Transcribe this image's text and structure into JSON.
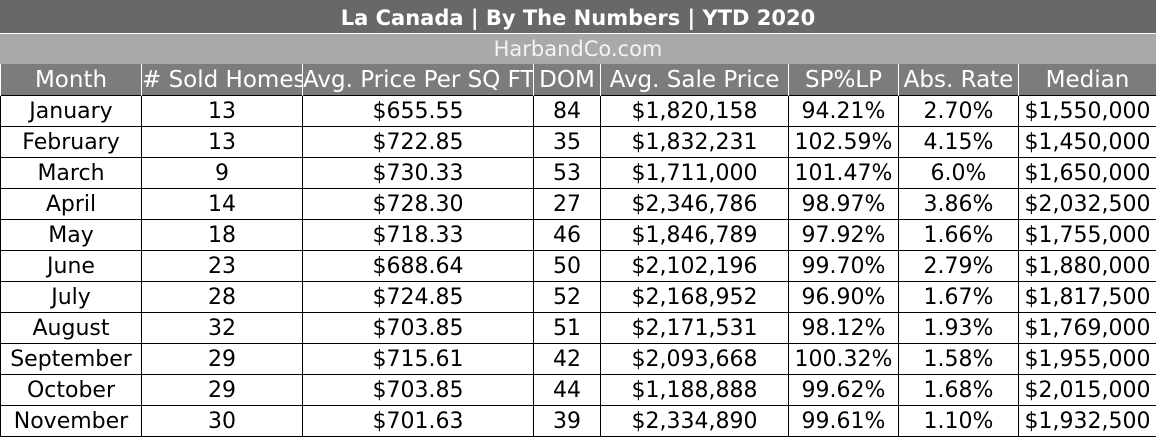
{
  "title": "La Canada  |  By The Numbers  |  YTD 2020",
  "subtitle": "HarbandCo.com",
  "chart_data": {
    "type": "table",
    "columns": [
      "Month",
      "# Sold Homes",
      "Avg. Price Per SQ FT",
      "DOM",
      "Avg. Sale Price",
      "SP%LP",
      "Abs. Rate",
      "Median"
    ],
    "rows": [
      [
        "January",
        "13",
        "$655.55",
        "84",
        "$1,820,158",
        "94.21%",
        "2.70%",
        "$1,550,000"
      ],
      [
        "February",
        "13",
        "$722.85",
        "35",
        "$1,832,231",
        "102.59%",
        "4.15%",
        "$1,450,000"
      ],
      [
        "March",
        "9",
        "$730.33",
        "53",
        "$1,711,000",
        "101.47%",
        "6.0%",
        "$1,650,000"
      ],
      [
        "April",
        "14",
        "$728.30",
        "27",
        "$2,346,786",
        "98.97%",
        "3.86%",
        "$2,032,500"
      ],
      [
        "May",
        "18",
        "$718.33",
        "46",
        "$1,846,789",
        "97.92%",
        "1.66%",
        "$1,755,000"
      ],
      [
        "June",
        "23",
        "$688.64",
        "50",
        "$2,102,196",
        "99.70%",
        "2.79%",
        "$1,880,000"
      ],
      [
        "July",
        "28",
        "$724.85",
        "52",
        "$2,168,952",
        "96.90%",
        "1.67%",
        "$1,817,500"
      ],
      [
        "August",
        "32",
        "$703.85",
        "51",
        "$2,171,531",
        "98.12%",
        "1.93%",
        "$1,769,000"
      ],
      [
        "September",
        "29",
        "$715.61",
        "42",
        "$2,093,668",
        "100.32%",
        "1.58%",
        "$1,955,000"
      ],
      [
        "October",
        "29",
        "$703.85",
        "44",
        "$1,188,888",
        "99.62%",
        "1.68%",
        "$2,015,000"
      ],
      [
        "November",
        "30",
        "$701.63",
        "39",
        "$2,334,890",
        "99.61%",
        "1.10%",
        "$1,932,500"
      ]
    ]
  }
}
